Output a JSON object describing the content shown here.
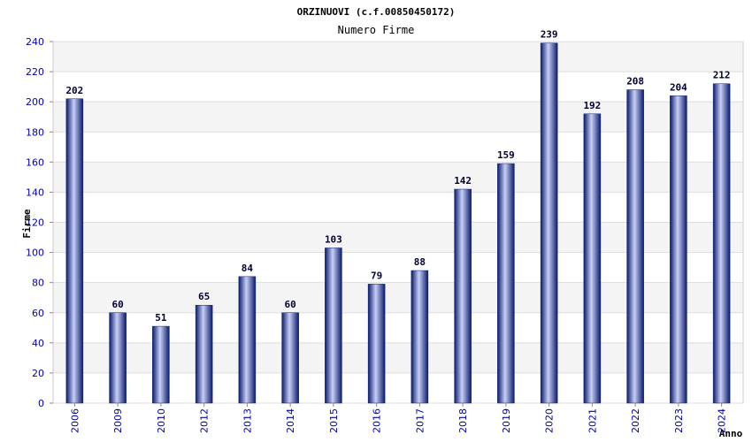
{
  "chart_data": {
    "type": "bar",
    "title": "ORZINUOVI (c.f.00850450172)",
    "subtitle": "Numero Firme",
    "xlabel": "Anno",
    "ylabel": "Firme",
    "categories": [
      "2006",
      "2009",
      "2010",
      "2012",
      "2013",
      "2014",
      "2015",
      "2016",
      "2017",
      "2018",
      "2019",
      "2020",
      "2021",
      "2022",
      "2023",
      "2024"
    ],
    "values": [
      202,
      60,
      51,
      65,
      84,
      60,
      103,
      79,
      88,
      142,
      159,
      239,
      192,
      208,
      204,
      212
    ],
    "ylim": [
      0,
      240
    ],
    "yticks": [
      0,
      20,
      40,
      60,
      80,
      100,
      120,
      140,
      160,
      180,
      200,
      220,
      240
    ],
    "colors": {
      "bar_dark": "#0a1a6e",
      "bar_light": "#c8d0f5",
      "band": "#f4f4f4",
      "grid": "#dddddd",
      "tick_text": "#0000aa"
    }
  }
}
